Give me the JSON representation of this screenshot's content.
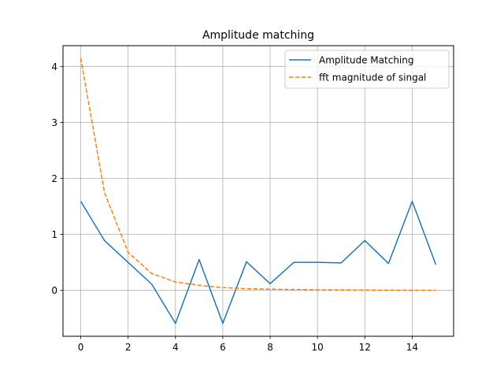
{
  "chart_data": {
    "type": "line",
    "title": "Amplitude matching",
    "xlabel": "",
    "ylabel": "",
    "xlim": [
      -0.75,
      15.75
    ],
    "ylim": [
      -0.82,
      4.37
    ],
    "xticks": [
      0,
      2,
      4,
      6,
      8,
      10,
      12,
      14
    ],
    "yticks": [
      0,
      1,
      2,
      3,
      4
    ],
    "grid": true,
    "legend_position": "upper right",
    "series": [
      {
        "name": "Amplitude Matching",
        "style": "solid",
        "color": "#1f77b4",
        "x": [
          0,
          1,
          2,
          3,
          4,
          5,
          6,
          7,
          8,
          9,
          10,
          11,
          12,
          13,
          14,
          15
        ],
        "y": [
          1.59,
          0.89,
          0.5,
          0.11,
          -0.59,
          0.55,
          -0.59,
          0.51,
          0.12,
          0.5,
          0.5,
          0.49,
          0.89,
          0.48,
          1.59,
          0.46
        ]
      },
      {
        "name": "fft magnitude of singal",
        "style": "dashed",
        "color": "#ff7f0e",
        "x": [
          0,
          1,
          2,
          3,
          4,
          5,
          6,
          7,
          8,
          9,
          10,
          11,
          12,
          13,
          14,
          15
        ],
        "y": [
          4.15,
          1.75,
          0.68,
          0.3,
          0.15,
          0.09,
          0.05,
          0.03,
          0.02,
          0.015,
          0.01,
          0.008,
          0.006,
          0.004,
          0.003,
          0.002
        ]
      }
    ]
  }
}
